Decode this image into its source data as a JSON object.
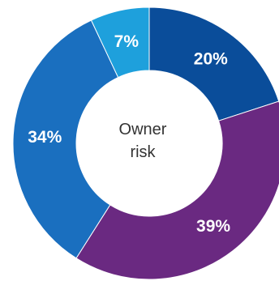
{
  "chart_data": {
    "type": "pie",
    "variant": "donut",
    "center_label_lines": [
      "Owner",
      "risk"
    ],
    "categories": [
      "",
      "",
      "",
      ""
    ],
    "values": [
      20,
      39,
      34,
      7
    ],
    "labels": [
      "20%",
      "39%",
      "34%",
      "7%"
    ],
    "colors": [
      "#0a4d9a",
      "#6a2981",
      "#1a6fbf",
      "#1ea0dc"
    ],
    "start": "12 o'clock",
    "direction": "clockwise",
    "legend": "none"
  }
}
